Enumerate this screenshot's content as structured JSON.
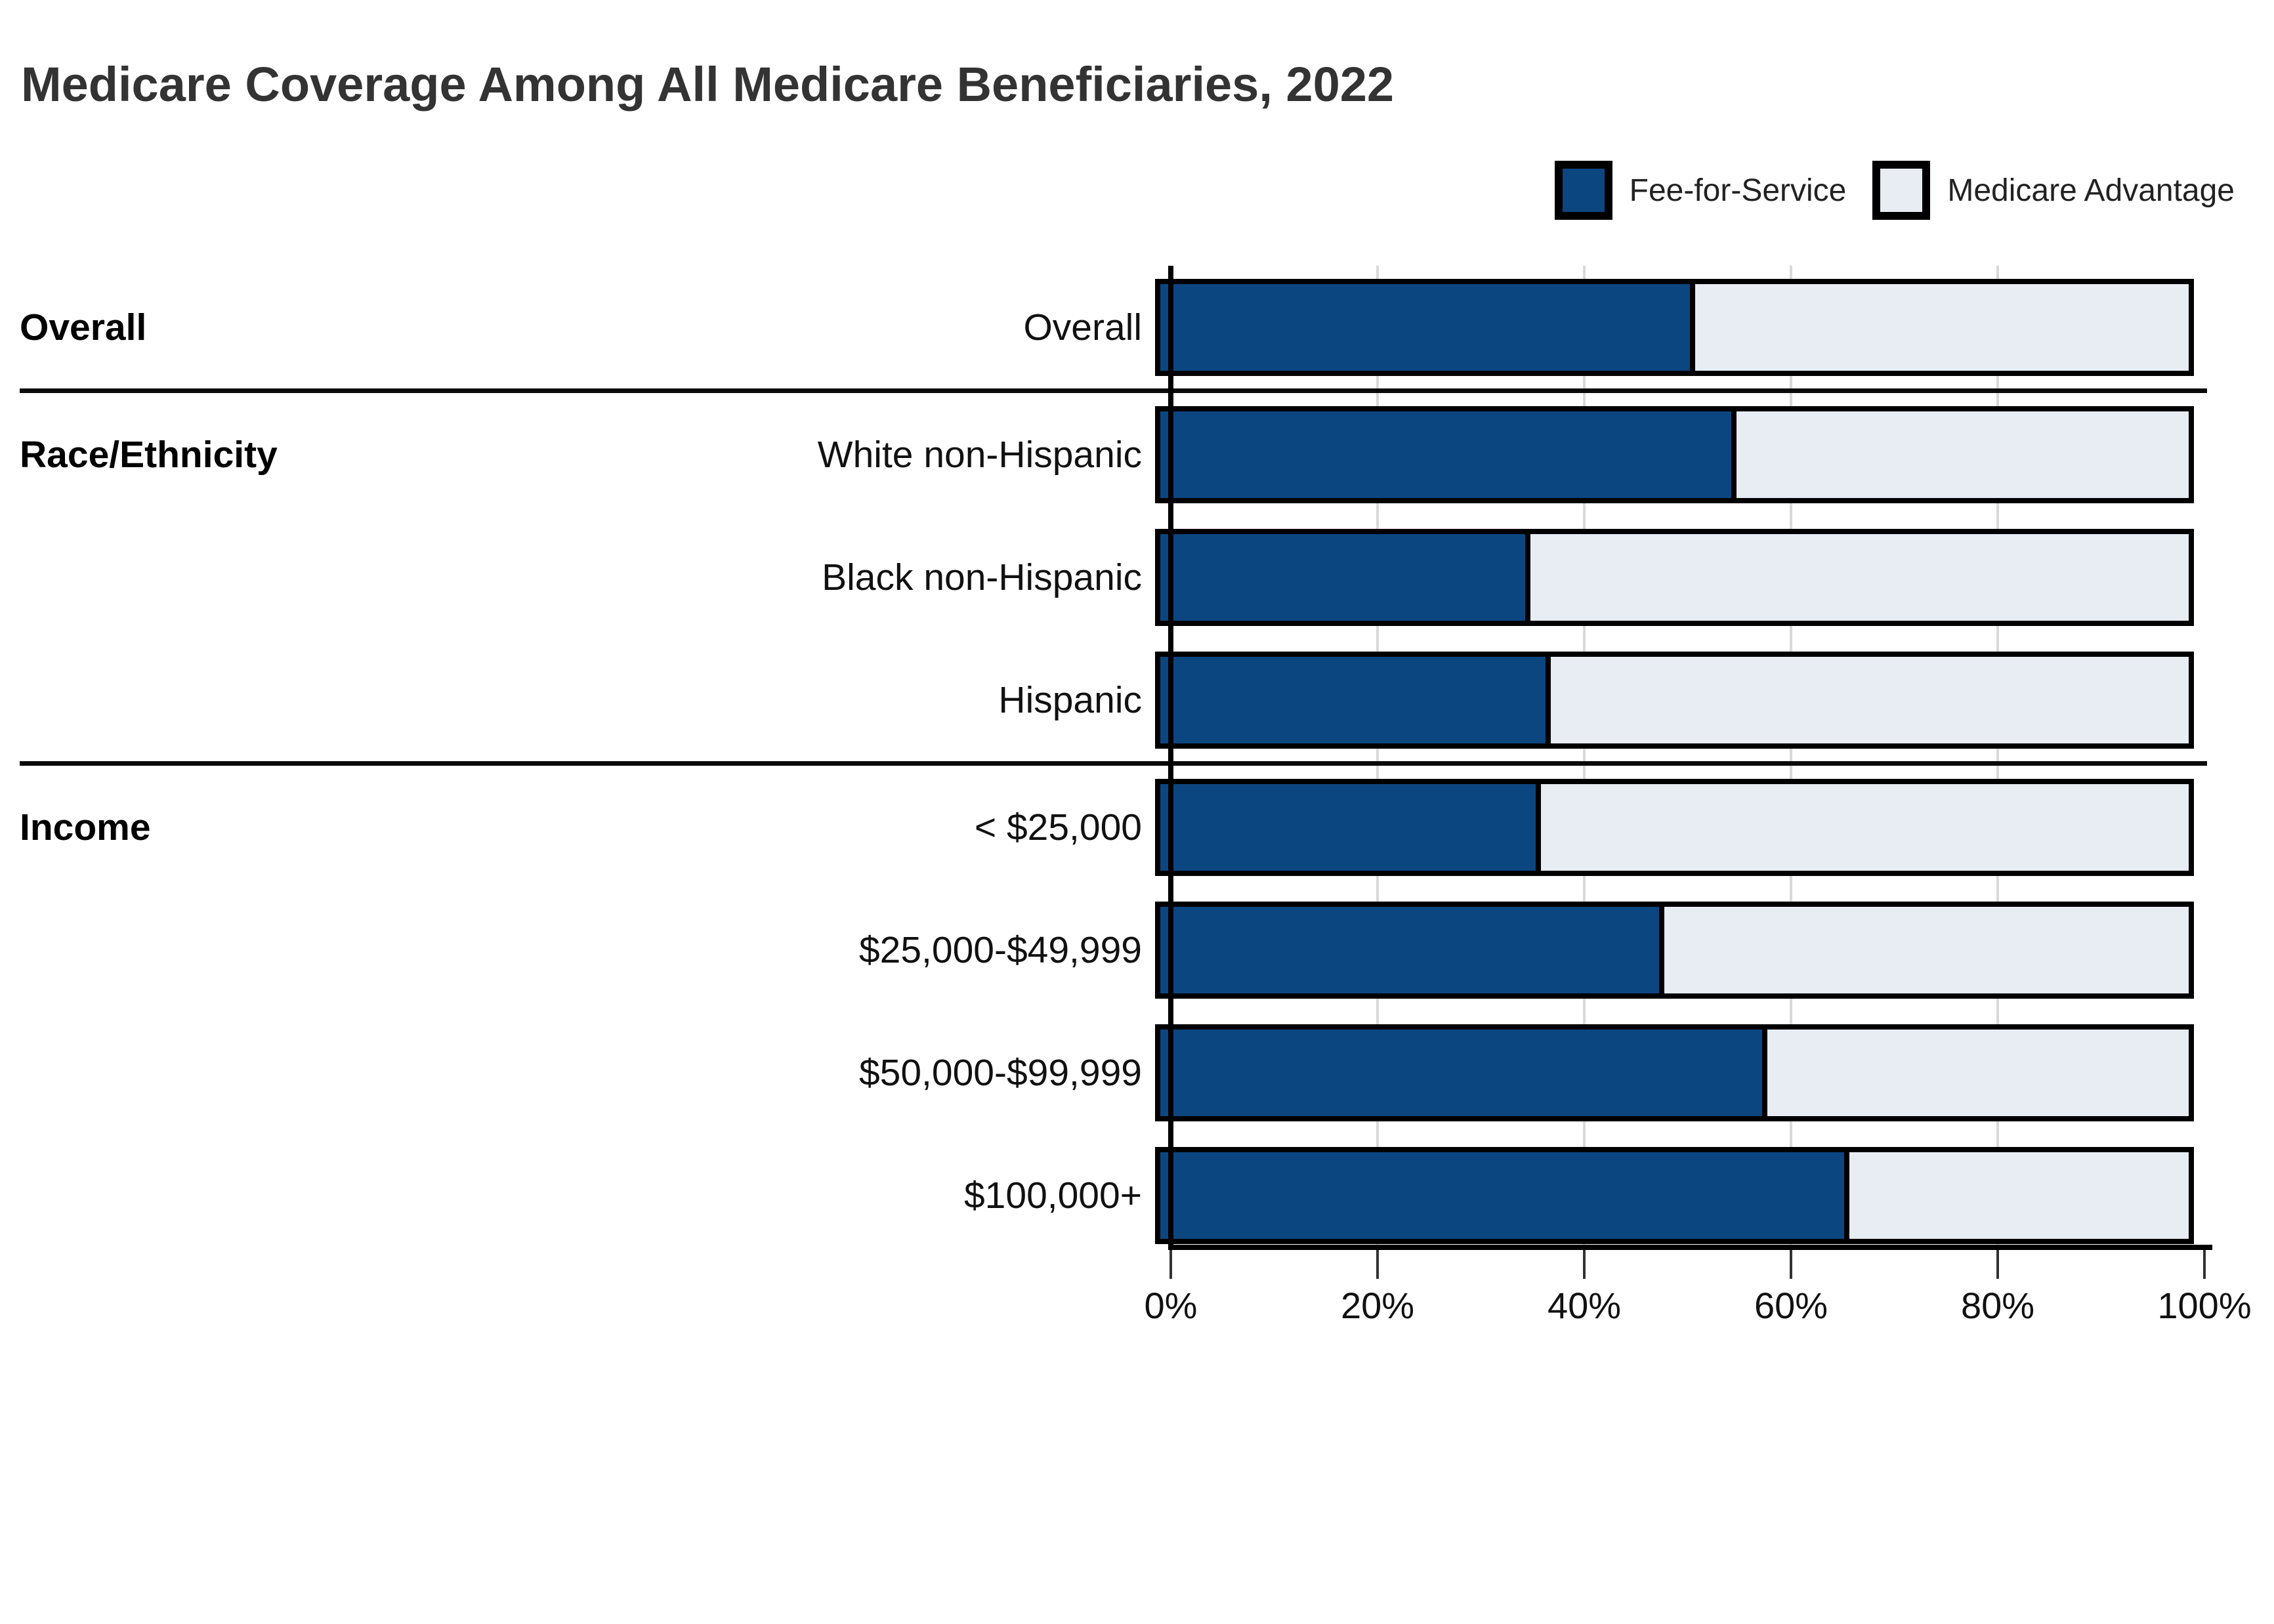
{
  "title": "Medicare Coverage Among All Medicare Beneficiaries, 2022",
  "legend": {
    "items": [
      {
        "label": "Fee-for-Service",
        "color": "#0c4680"
      },
      {
        "label": "Medicare Advantage",
        "color": "#e8ecf3"
      }
    ]
  },
  "colors": {
    "fee_for_service": "#0c4680",
    "medicare_advantage": "#e8ecf3",
    "bar_border": "#000000",
    "gridline": "#d9d9d9",
    "title_text": "#333333"
  },
  "chart_data": {
    "type": "bar",
    "orientation": "horizontal",
    "stacked": true,
    "title": "Medicare Coverage Among All Medicare Beneficiaries, 2022",
    "xlabel": "",
    "ylabel": "",
    "xlim": [
      0,
      100
    ],
    "x_tick_labels": [
      "0%",
      "20%",
      "40%",
      "60%",
      "80%",
      "100%"
    ],
    "x_tick_values": [
      0,
      20,
      40,
      60,
      80,
      100
    ],
    "grid_tick_values": [
      20,
      40,
      60,
      80
    ],
    "legend_position": "top-right",
    "categories": [
      "Overall",
      "White non-Hispanic",
      "Black non-Hispanic",
      "Hispanic",
      "< $25,000",
      "$25,000-$49,999",
      "$50,000-$99,999",
      "$100,000+"
    ],
    "series": [
      {
        "name": "Fee-for-Service",
        "values": [
          52,
          56,
          36,
          38,
          37,
          49,
          59,
          67
        ]
      },
      {
        "name": "Medicare Advantage",
        "values": [
          48,
          44,
          64,
          62,
          63,
          51,
          41,
          33
        ]
      }
    ],
    "groups": [
      {
        "label": "Overall",
        "rows": [
          {
            "label": "Overall",
            "fee_for_service": 52,
            "medicare_advantage": 48
          }
        ]
      },
      {
        "label": "Race/Ethnicity",
        "rows": [
          {
            "label": "White non-Hispanic",
            "fee_for_service": 56,
            "medicare_advantage": 44
          },
          {
            "label": "Black non-Hispanic",
            "fee_for_service": 36,
            "medicare_advantage": 64
          },
          {
            "label": "Hispanic",
            "fee_for_service": 38,
            "medicare_advantage": 62
          }
        ]
      },
      {
        "label": "Income",
        "rows": [
          {
            "label": "< $25,000",
            "fee_for_service": 37,
            "medicare_advantage": 63
          },
          {
            "label": "$25,000-$49,999",
            "fee_for_service": 49,
            "medicare_advantage": 51
          },
          {
            "label": "$50,000-$99,999",
            "fee_for_service": 59,
            "medicare_advantage": 41
          },
          {
            "label": "$100,000+",
            "fee_for_service": 67,
            "medicare_advantage": 33
          }
        ]
      }
    ]
  }
}
